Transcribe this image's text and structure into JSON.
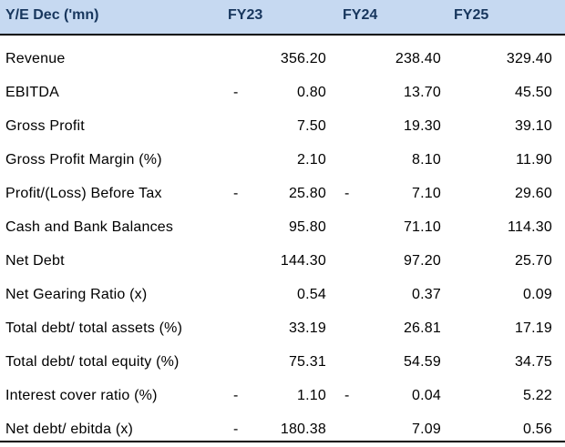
{
  "table": {
    "headers": [
      "Y/E Dec ('mn)",
      "FY23",
      "FY24",
      "FY25"
    ],
    "rows": [
      {
        "label": "Revenue",
        "fy23": {
          "sign": "",
          "value": "356.20"
        },
        "fy24": {
          "sign": "",
          "value": "238.40"
        },
        "fy25": {
          "sign": "",
          "value": "329.40"
        }
      },
      {
        "label": "EBITDA",
        "fy23": {
          "sign": "-",
          "value": "0.80"
        },
        "fy24": {
          "sign": "",
          "value": "13.70"
        },
        "fy25": {
          "sign": "",
          "value": "45.50"
        }
      },
      {
        "label": "Gross Profit",
        "fy23": {
          "sign": "",
          "value": "7.50"
        },
        "fy24": {
          "sign": "",
          "value": "19.30"
        },
        "fy25": {
          "sign": "",
          "value": "39.10"
        }
      },
      {
        "label": "Gross Profit Margin (%)",
        "fy23": {
          "sign": "",
          "value": "2.10"
        },
        "fy24": {
          "sign": "",
          "value": "8.10"
        },
        "fy25": {
          "sign": "",
          "value": "11.90"
        }
      },
      {
        "label": "Profit/(Loss) Before Tax",
        "fy23": {
          "sign": "-",
          "value": "25.80"
        },
        "fy24": {
          "sign": "-",
          "value": "7.10"
        },
        "fy25": {
          "sign": "",
          "value": "29.60"
        }
      },
      {
        "label": "Cash and Bank Balances",
        "fy23": {
          "sign": "",
          "value": "95.80"
        },
        "fy24": {
          "sign": "",
          "value": "71.10"
        },
        "fy25": {
          "sign": "",
          "value": "114.30"
        }
      },
      {
        "label": "Net Debt",
        "fy23": {
          "sign": "",
          "value": "144.30"
        },
        "fy24": {
          "sign": "",
          "value": "97.20"
        },
        "fy25": {
          "sign": "",
          "value": "25.70"
        }
      },
      {
        "label": "Net Gearing Ratio (x)",
        "fy23": {
          "sign": "",
          "value": "0.54"
        },
        "fy24": {
          "sign": "",
          "value": "0.37"
        },
        "fy25": {
          "sign": "",
          "value": "0.09"
        }
      },
      {
        "label": "Total debt/ total assets (%)",
        "fy23": {
          "sign": "",
          "value": "33.19"
        },
        "fy24": {
          "sign": "",
          "value": "26.81"
        },
        "fy25": {
          "sign": "",
          "value": "17.19"
        }
      },
      {
        "label": "Total debt/ total equity (%)",
        "fy23": {
          "sign": "",
          "value": "75.31"
        },
        "fy24": {
          "sign": "",
          "value": "54.59"
        },
        "fy25": {
          "sign": "",
          "value": "34.75"
        }
      },
      {
        "label": "Interest cover ratio (%)",
        "fy23": {
          "sign": "-",
          "value": "1.10"
        },
        "fy24": {
          "sign": "-",
          "value": "0.04"
        },
        "fy25": {
          "sign": "",
          "value": "5.22"
        }
      },
      {
        "label": "Net debt/ ebitda (x)",
        "fy23": {
          "sign": "-",
          "value": "180.38"
        },
        "fy24": {
          "sign": "",
          "value": "7.09"
        },
        "fy25": {
          "sign": "",
          "value": "0.56"
        }
      }
    ]
  }
}
